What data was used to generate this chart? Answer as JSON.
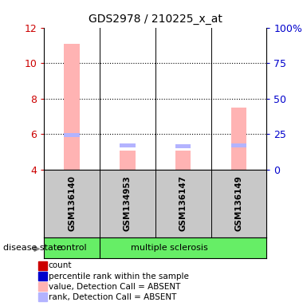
{
  "title": "GDS2978 / 210225_x_at",
  "samples": [
    "GSM136140",
    "GSM134953",
    "GSM136147",
    "GSM136149"
  ],
  "bar_values": [
    11.1,
    5.1,
    5.1,
    7.5
  ],
  "rank_values": [
    5.85,
    5.25,
    5.2,
    5.25
  ],
  "ylim_left": [
    4,
    12
  ],
  "ylim_right": [
    0,
    100
  ],
  "left_ticks": [
    4,
    6,
    8,
    10,
    12
  ],
  "right_ticks": [
    0,
    25,
    50,
    75,
    100
  ],
  "right_tick_labels": [
    "0",
    "25",
    "50",
    "75",
    "100%"
  ],
  "left_tick_color": "#cc0000",
  "right_tick_color": "#0000cc",
  "bar_color_absent": "#ffb3b3",
  "rank_color_absent": "#b3b3ff",
  "label_bg": "#c8c8c8",
  "group_color": "#66ee66",
  "disease_state_label": "disease state",
  "legend_colors": [
    "#cc0000",
    "#0000cc",
    "#ffb3b3",
    "#b3b3ff"
  ],
  "legend_labels": [
    "count",
    "percentile rank within the sample",
    "value, Detection Call = ABSENT",
    "rank, Detection Call = ABSENT"
  ],
  "bar_width": 0.28
}
